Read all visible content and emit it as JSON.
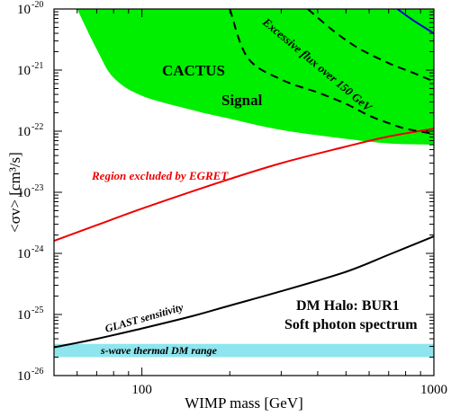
{
  "chart_data": {
    "type": "line",
    "xlabel": "WIMP mass  [GeV]",
    "ylabel": "<σv>  [cm³/s]",
    "xscale": "log",
    "yscale": "log",
    "xlim": [
      50,
      1000
    ],
    "ylim": [
      1e-26,
      1e-20
    ],
    "grid": false,
    "x_ticks": [
      {
        "value": 100,
        "label": "100"
      },
      {
        "value": 1000,
        "label": "1000"
      }
    ],
    "y_ticks": [
      {
        "value": 1e-26,
        "base": "10",
        "exp": "-26"
      },
      {
        "value": 1e-25,
        "base": "10",
        "exp": "-25"
      },
      {
        "value": 1e-24,
        "base": "10",
        "exp": "-24"
      },
      {
        "value": 1e-23,
        "base": "10",
        "exp": "-23"
      },
      {
        "value": 1e-22,
        "base": "10",
        "exp": "-22"
      },
      {
        "value": 1e-21,
        "base": "10",
        "exp": "-21"
      },
      {
        "value": 1e-20,
        "base": "10",
        "exp": "-20"
      }
    ],
    "bands": [
      {
        "name": "CACTUS Signal",
        "color": "#00ee00",
        "upper": [
          [
            60,
            1e-20
          ],
          [
            100,
            1e-20
          ],
          [
            200,
            1e-20
          ],
          [
            300,
            1e-20
          ],
          [
            400,
            1e-20
          ],
          [
            500,
            1e-20
          ],
          [
            600,
            1e-20
          ],
          [
            700,
            1e-20
          ],
          [
            800,
            1e-20
          ],
          [
            1000,
            1e-20
          ]
        ],
        "lower": [
          [
            60,
            1e-20
          ],
          [
            70,
            2.2e-21
          ],
          [
            80,
            7.5e-22
          ],
          [
            100,
            3.8e-22
          ],
          [
            150,
            2.2e-22
          ],
          [
            200,
            1.6e-22
          ],
          [
            300,
            1.05e-22
          ],
          [
            500,
            7.5e-23
          ],
          [
            700,
            6.3e-23
          ],
          [
            1000,
            6e-23
          ]
        ]
      },
      {
        "name": "s-wave thermal DM range",
        "color": "#8ee5ee",
        "upper": [
          [
            50,
            3.3e-26
          ],
          [
            1000,
            3.3e-26
          ]
        ],
        "lower": [
          [
            50,
            2e-26
          ],
          [
            1000,
            2e-26
          ]
        ]
      }
    ],
    "series": [
      {
        "name": "Region excluded by EGRET",
        "color": "#ee0000",
        "style": "solid",
        "points": [
          [
            50,
            1.6e-24
          ],
          [
            70,
            2.9e-24
          ],
          [
            100,
            5.4e-24
          ],
          [
            150,
            1.05e-23
          ],
          [
            200,
            1.65e-23
          ],
          [
            300,
            3e-23
          ],
          [
            500,
            5.6e-23
          ],
          [
            700,
            8.2e-23
          ],
          [
            1000,
            1.1e-22
          ]
        ]
      },
      {
        "name": "GLAST sensitivity",
        "color": "#000000",
        "style": "solid",
        "points": [
          [
            50,
            2.9e-26
          ],
          [
            70,
            4e-26
          ],
          [
            100,
            5.9e-26
          ],
          [
            150,
            9.5e-26
          ],
          [
            200,
            1.4e-25
          ],
          [
            300,
            2.4e-25
          ],
          [
            500,
            5e-25
          ],
          [
            700,
            9.5e-25
          ],
          [
            1000,
            1.9e-24
          ]
        ]
      },
      {
        "name": "Excessive flux over 150 GeV",
        "color": "#000000",
        "style": "dashed",
        "points": [
          [
            200,
            1e-20
          ],
          [
            230,
            1.6e-21
          ],
          [
            300,
            7e-22
          ],
          [
            400,
            4.3e-22
          ],
          [
            500,
            2.8e-22
          ],
          [
            600,
            1.8e-22
          ],
          [
            700,
            1.35e-22
          ],
          [
            800,
            1.1e-22
          ],
          [
            1000,
            9e-23
          ]
        ]
      },
      {
        "name": "dashed-upper",
        "color": "#000000",
        "style": "dashed",
        "points": [
          [
            370,
            1e-20
          ],
          [
            450,
            4.5e-21
          ],
          [
            550,
            2.3e-21
          ],
          [
            700,
            1.3e-21
          ],
          [
            850,
            9e-22
          ],
          [
            1000,
            6.5e-22
          ]
        ]
      },
      {
        "name": "blue-curve",
        "color": "#0000cc",
        "style": "solid",
        "points": [
          [
            750,
            1e-20
          ],
          [
            850,
            6.5e-21
          ],
          [
            1000,
            4e-21
          ]
        ]
      }
    ],
    "annotations": {
      "cactus": "CACTUS",
      "signal": "Signal",
      "excessive": "Excessive flux over 150 GeV",
      "egret": "Region excluded by EGRET",
      "glast": "GLAST sensitivity",
      "swave": "s-wave thermal DM range",
      "halo": "DM Halo: BUR1",
      "spectrum": "Soft photon spectrum"
    }
  }
}
